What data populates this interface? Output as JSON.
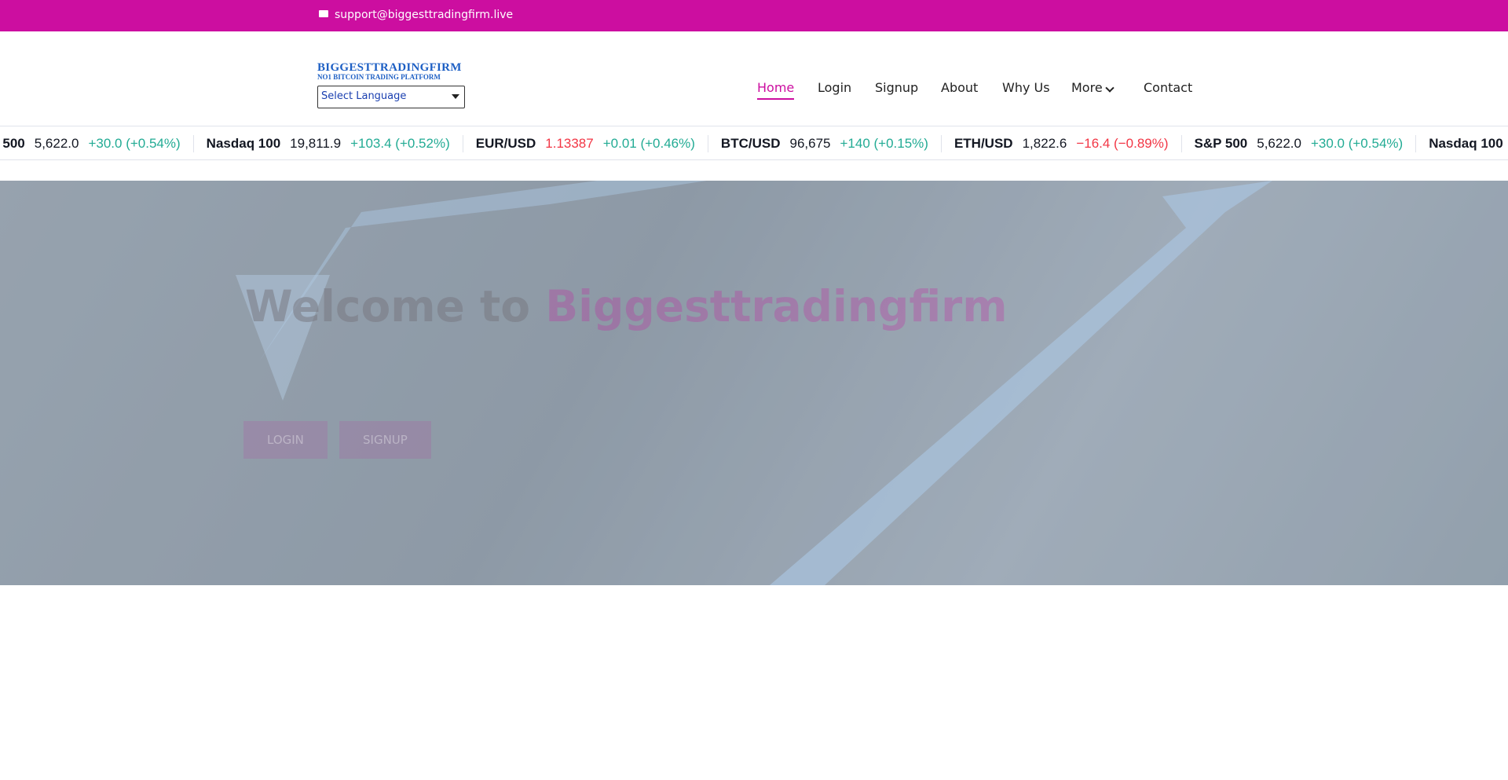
{
  "topbar": {
    "email": "support@biggesttradingfirm.live"
  },
  "header": {
    "logo_title": "BIGGESTTRADINGFIRM",
    "logo_subtitle": "NO1 BITCOIN TRADING PLATFORM",
    "language_select": "Select Language"
  },
  "nav": [
    "Home",
    "Login",
    "Signup",
    "About",
    "Why Us",
    "More",
    "Contact"
  ],
  "ticker": [
    {
      "name": "S&P 500",
      "price": "5,622.0",
      "change": "+30.0 (+0.54%)",
      "price_color": "#131722",
      "change_color": "#22ab94"
    },
    {
      "name": "Nasdaq 100",
      "price": "19,811.9",
      "change": "+103.4 (+0.52%)",
      "price_color": "#131722",
      "change_color": "#22ab94"
    },
    {
      "name": "EUR/USD",
      "price": "1.13387",
      "change": "+0.01 (+0.46%)",
      "price_color": "#f23645",
      "change_color": "#22ab94"
    },
    {
      "name": "BTC/USD",
      "price": "96,675",
      "change": "+140 (+0.15%)",
      "price_color": "#131722",
      "change_color": "#22ab94"
    },
    {
      "name": "ETH/USD",
      "price": "1,822.6",
      "change": "−16.4 (−0.89%)",
      "price_color": "#131722",
      "change_color": "#f23645"
    }
  ],
  "hero": {
    "heading_start": "Welcome to",
    "heading_brand": "Biggesttradingfirm",
    "buttons": [
      "LOGIN",
      "SIGNUP"
    ]
  }
}
